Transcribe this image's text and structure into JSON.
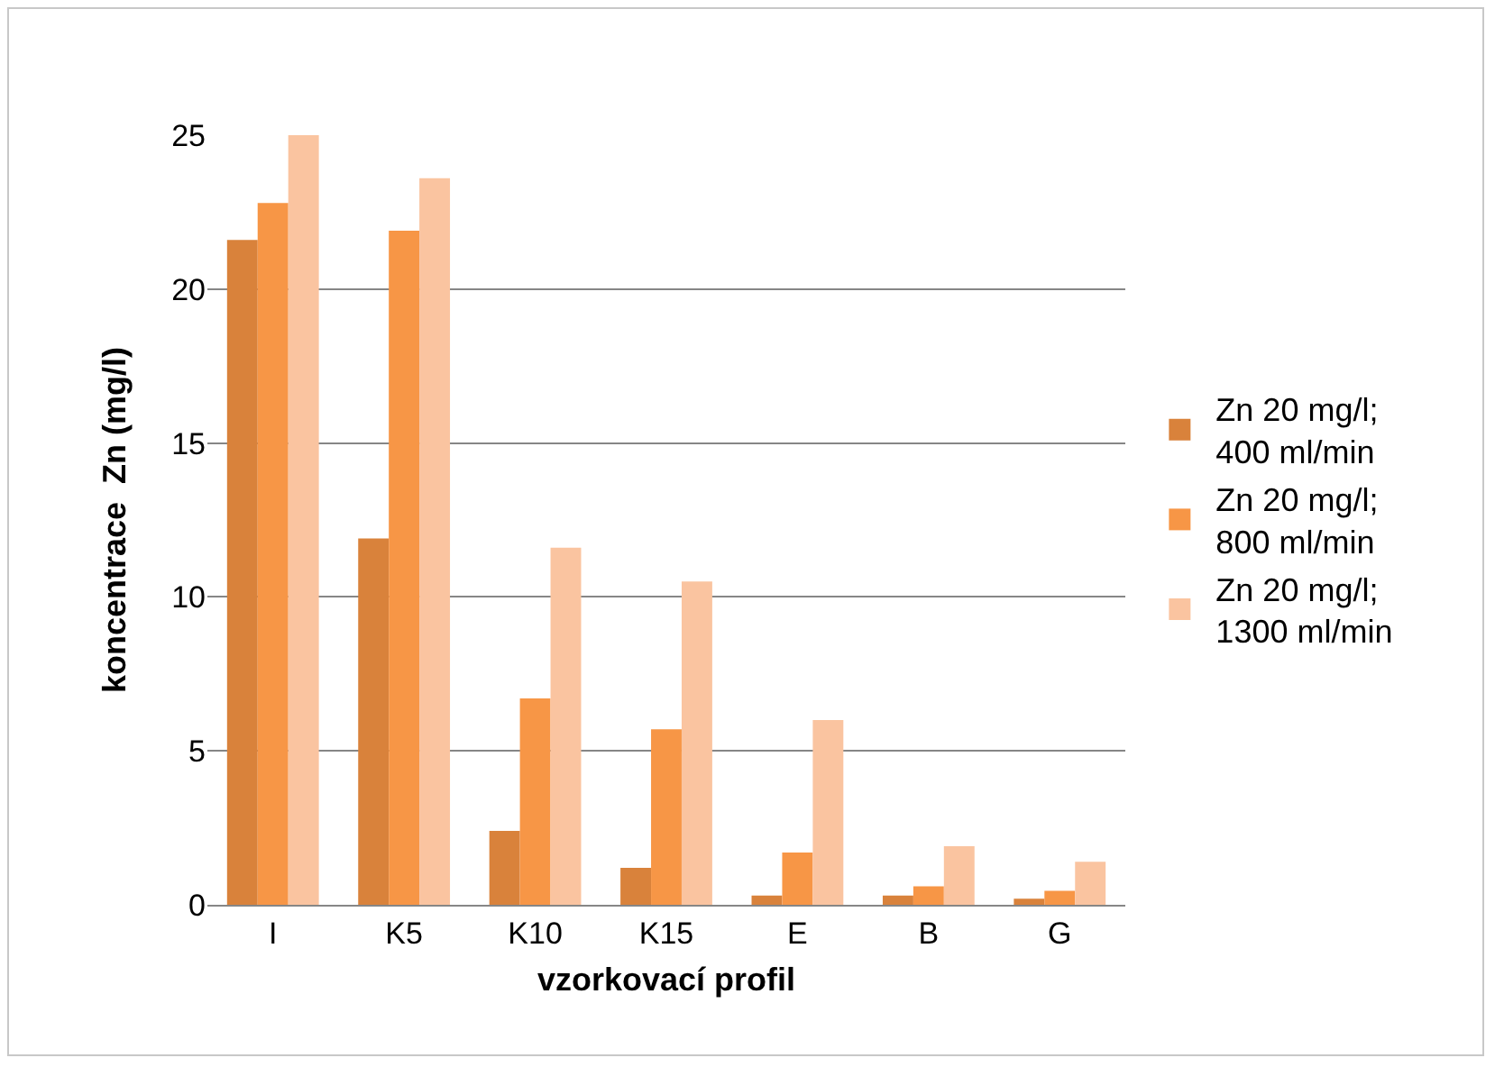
{
  "chart_data": {
    "type": "bar",
    "xlabel": "vzorkovací profil",
    "ylabel": "koncentrace  Zn (mg/l)",
    "categories": [
      "I",
      "K5",
      "K10",
      "K15",
      "E",
      "B",
      "G"
    ],
    "series": [
      {
        "name": "Zn 20 mg/l; 400 ml/min",
        "color": "#d9823b",
        "values": [
          21.6,
          11.9,
          2.4,
          1.2,
          0.3,
          0.3,
          0.2
        ]
      },
      {
        "name": "Zn 20 mg/l; 800 ml/min",
        "color": "#f79646",
        "values": [
          22.8,
          21.9,
          6.7,
          5.7,
          1.7,
          0.6,
          0.45
        ]
      },
      {
        "name": "Zn 20 mg/l; 1300 ml/min",
        "color": "#fac4a0",
        "values": [
          25.0,
          23.6,
          11.6,
          10.5,
          6.0,
          1.9,
          1.4
        ]
      }
    ],
    "ylim": [
      0,
      25
    ],
    "yticks": [
      0,
      5,
      10,
      15,
      20,
      25
    ],
    "grid": "y",
    "legend": "right"
  }
}
